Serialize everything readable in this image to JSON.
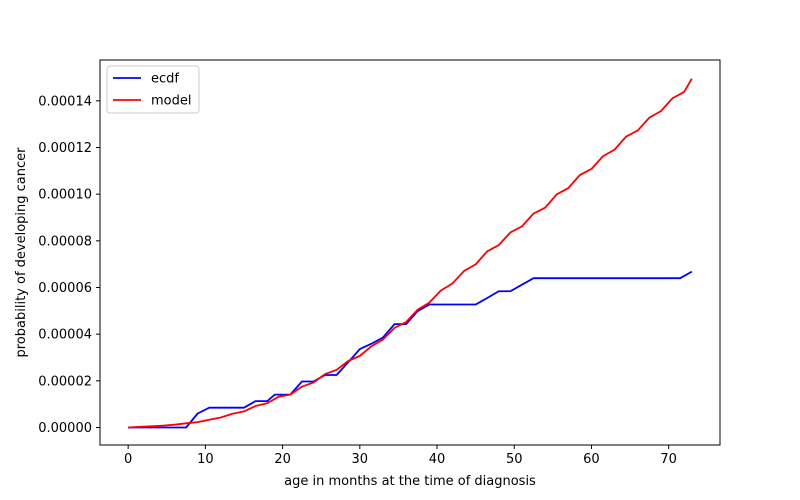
{
  "chart_data": {
    "type": "line",
    "title": "",
    "xlabel": "age in months at the time of diagnosis",
    "ylabel": "probability of developing cancer",
    "xlim": [
      -3.65,
      76.65
    ],
    "ylim": [
      -7.5e-06,
      0.0001575
    ],
    "xticks": [
      0,
      10,
      20,
      30,
      40,
      50,
      60,
      70
    ],
    "xtick_labels": [
      "0",
      "10",
      "20",
      "30",
      "40",
      "50",
      "60",
      "70"
    ],
    "yticks": [
      0,
      2e-05,
      4e-05,
      6e-05,
      8e-05,
      0.0001,
      0.00012,
      0.00014
    ],
    "ytick_labels": [
      "0.00000",
      "0.00002",
      "0.00004",
      "0.00006",
      "0.00008",
      "0.00010",
      "0.00012",
      "0.00014"
    ],
    "grid": false,
    "legend_position": "top-left",
    "series": [
      {
        "name": "ecdf",
        "color": "#0000ff",
        "x": [
          0,
          1,
          2,
          3,
          4,
          5,
          6,
          7,
          7.5,
          9,
          10.5,
          12,
          13,
          14,
          15,
          16.5,
          18,
          19,
          20,
          21,
          22.5,
          24,
          25.5,
          27,
          28.5,
          30,
          31.5,
          33,
          34.5,
          36,
          37.5,
          39,
          40.5,
          42,
          43.5,
          45,
          46.5,
          48,
          49.5,
          51,
          52.5,
          54,
          55.5,
          57,
          58.5,
          60,
          61.5,
          63,
          64.5,
          66,
          67.5,
          69,
          70.5,
          71.5,
          73
        ],
        "y": [
          0,
          0,
          0,
          0,
          0,
          0,
          0,
          0,
          0,
          6e-06,
          8.5e-06,
          8.5e-06,
          8.5e-06,
          8.5e-06,
          8.5e-06,
          1.13e-05,
          1.13e-05,
          1.41e-05,
          1.41e-05,
          1.41e-05,
          1.97e-05,
          1.97e-05,
          2.25e-05,
          2.25e-05,
          2.8e-05,
          3.36e-05,
          3.59e-05,
          3.86e-05,
          4.43e-05,
          4.43e-05,
          4.99e-05,
          5.27e-05,
          5.27e-05,
          5.27e-05,
          5.27e-05,
          5.27e-05,
          5.55e-05,
          5.84e-05,
          5.84e-05,
          6.12e-05,
          6.4e-05,
          6.4e-05,
          6.4e-05,
          6.4e-05,
          6.4e-05,
          6.4e-05,
          6.4e-05,
          6.4e-05,
          6.4e-05,
          6.4e-05,
          6.4e-05,
          6.4e-05,
          6.4e-05,
          6.4e-05,
          6.68e-05
        ]
      },
      {
        "name": "model",
        "color": "#ff0000",
        "x": [
          0,
          1.5,
          3,
          4.5,
          6,
          7.5,
          9,
          10.5,
          12,
          13.5,
          15,
          16.5,
          18,
          19.5,
          21,
          22.5,
          24,
          25.5,
          27,
          28.5,
          30,
          31.5,
          33,
          34.5,
          36,
          37.5,
          39,
          40.5,
          42,
          43.5,
          45,
          46.5,
          48,
          49.5,
          51,
          52.5,
          54,
          55.5,
          57,
          58.5,
          60,
          61.5,
          63,
          64.5,
          66,
          67.5,
          69,
          70.5,
          72,
          73
        ],
        "y": [
          0,
          3e-07,
          5e-07,
          8e-07,
          1.2e-06,
          1.8e-06,
          2.3e-06,
          3.3e-06,
          4.3e-06,
          5.9e-06,
          6.9e-06,
          9.2e-06,
          1.04e-05,
          1.32e-05,
          1.41e-05,
          1.75e-05,
          1.93e-05,
          2.29e-05,
          2.47e-05,
          2.85e-05,
          3.07e-05,
          3.48e-05,
          3.77e-05,
          4.27e-05,
          4.52e-05,
          5.05e-05,
          5.35e-05,
          5.87e-05,
          6.17e-05,
          6.71e-05,
          6.99e-05,
          7.55e-05,
          7.82e-05,
          8.36e-05,
          8.62e-05,
          9.17e-05,
          9.42e-05,
          9.99e-05,
          0.0001026,
          0.0001082,
          0.0001108,
          0.0001163,
          0.0001191,
          0.0001247,
          0.0001273,
          0.0001328,
          0.0001356,
          0.0001411,
          0.0001438,
          0.0001495
        ]
      }
    ]
  }
}
